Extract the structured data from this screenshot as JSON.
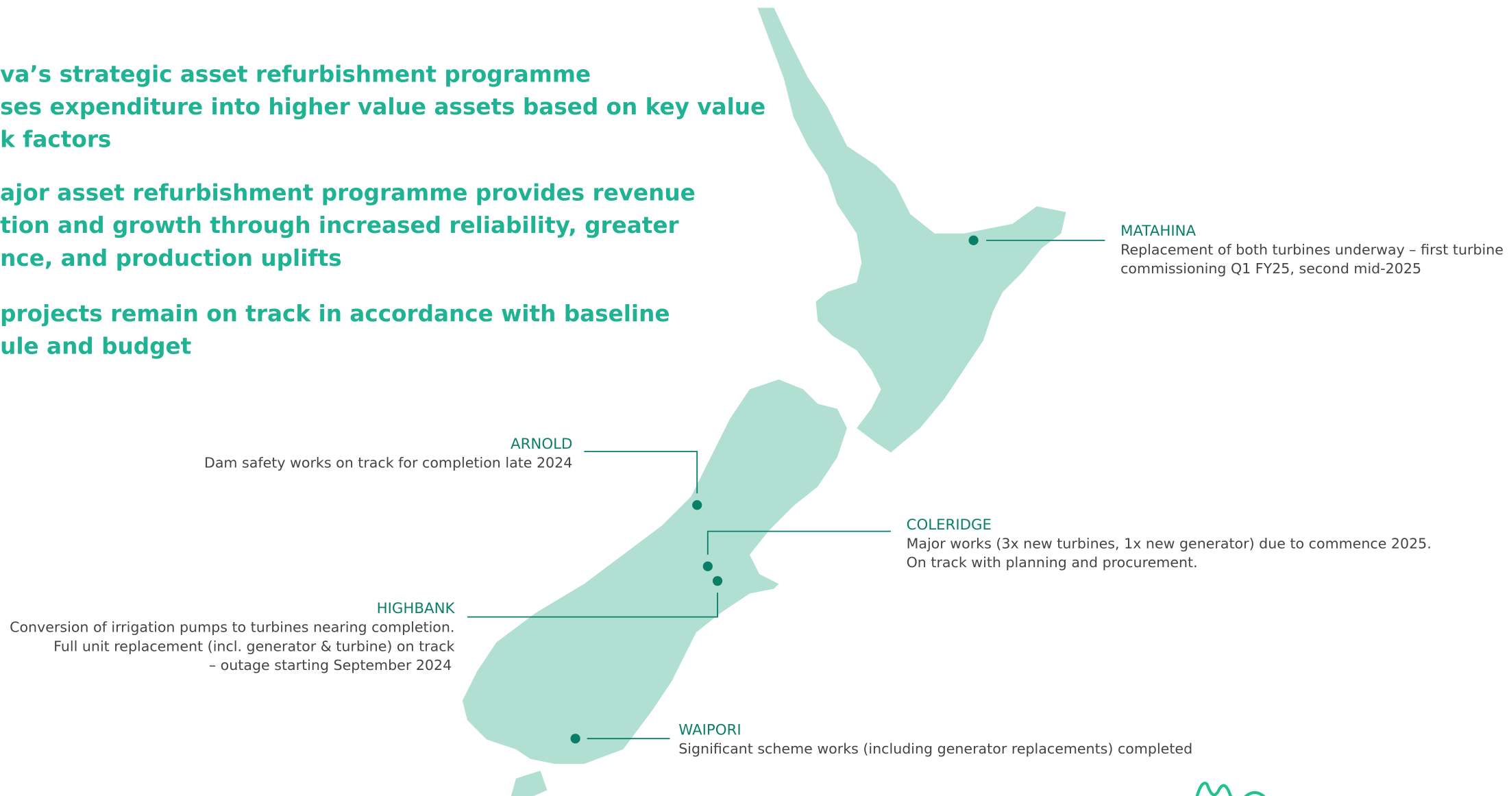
{
  "bullets": [
    [
      "va’s strategic asset refurbishment programme",
      "ses expenditure into higher value assets based on key value",
      "k factors"
    ],
    [
      "ajor asset refurbishment programme provides revenue",
      "tion and growth through increased reliability, greater",
      "nce, and production uplifts"
    ],
    [
      "projects remain on track in accordance with baseline",
      "ule and budget"
    ]
  ],
  "sites": [
    {
      "name": "MATAHINA",
      "description": [
        "Replacement of both turbines underway – first turbine",
        "commissioning Q1 FY25, second mid-2025"
      ]
    },
    {
      "name": "ARNOLD",
      "description": [
        "Dam safety works on track for completion late 2024"
      ]
    },
    {
      "name": "COLERIDGE",
      "description": [
        "Major works (3x new turbines, 1x new generator) due to commence 2025.",
        "On track with planning and procurement."
      ]
    },
    {
      "name": "HIGHBANK",
      "description": [
        "Conversion of irrigation pumps to turbines nearing completion.",
        "Full unit replacement (incl. generator & turbine) on track",
        "– outage starting September 2024"
      ]
    },
    {
      "name": "WAIPORI",
      "description": [
        "Significant scheme works (including generator replacements) completed"
      ]
    }
  ]
}
